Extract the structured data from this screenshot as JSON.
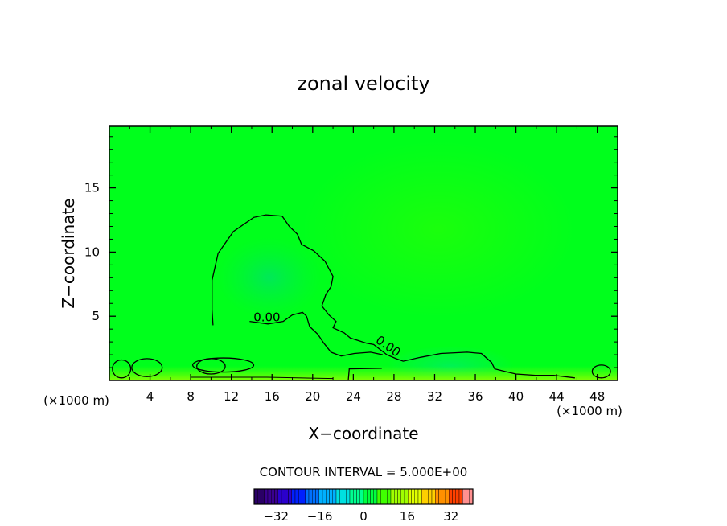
{
  "chart_data": {
    "type": "heatmap",
    "title": "zonal velocity",
    "xlabel": "X−coordinate",
    "ylabel": "Z−coordinate",
    "x_unit_left": "(×1000 m)",
    "x_unit_right": "(×1000 m)",
    "xlim": [
      0,
      50
    ],
    "ylim": [
      0,
      19.8
    ],
    "x_ticks": [
      4,
      8,
      12,
      16,
      20,
      24,
      28,
      32,
      36,
      40,
      44,
      48
    ],
    "y_ticks": [
      5,
      10,
      15
    ],
    "contour_interval_text": "CONTOUR INTERVAL = 5.000E+00",
    "contour_labels": [
      "0.00",
      "0.00"
    ],
    "colorbar": {
      "range": [
        -40,
        40
      ],
      "tick_values": [
        -32,
        -16,
        0,
        16,
        32
      ],
      "tick_labels": [
        "−32",
        "−16",
        "0",
        "16",
        "32"
      ]
    },
    "zero_contour_main": [
      [
        10.2,
        4.3
      ],
      [
        10.1,
        5.5
      ],
      [
        10.1,
        7.8
      ],
      [
        10.7,
        9.9
      ],
      [
        12.2,
        11.6
      ],
      [
        14.2,
        12.7
      ],
      [
        15.4,
        12.9
      ],
      [
        17.0,
        12.8
      ],
      [
        17.7,
        12.0
      ],
      [
        18.5,
        11.4
      ],
      [
        18.9,
        10.6
      ],
      [
        20.1,
        10.1
      ],
      [
        21.2,
        9.3
      ],
      [
        22.0,
        8.1
      ],
      [
        21.8,
        7.3
      ],
      [
        21.3,
        6.7
      ],
      [
        20.9,
        5.8
      ],
      [
        21.6,
        5.1
      ],
      [
        22.3,
        4.6
      ],
      [
        22.0,
        4.1
      ],
      [
        23.1,
        3.7
      ],
      [
        23.7,
        3.3
      ],
      [
        25.3,
        2.9
      ],
      [
        26.0,
        2.8
      ],
      [
        27.3,
        2.0
      ],
      [
        28.2,
        1.7
      ],
      [
        28.9,
        1.5
      ],
      [
        30.6,
        1.8
      ],
      [
        32.6,
        2.1
      ],
      [
        35.2,
        2.2
      ],
      [
        36.6,
        2.1
      ],
      [
        37.6,
        1.4
      ],
      [
        37.9,
        0.9
      ],
      [
        38.9,
        0.7
      ],
      [
        40.0,
        0.5
      ],
      [
        41.9,
        0.4
      ],
      [
        43.7,
        0.4
      ],
      [
        45.8,
        0.2
      ]
    ],
    "zero_contour_inner": [
      [
        13.8,
        4.6
      ],
      [
        15.6,
        4.4
      ],
      [
        17.1,
        4.6
      ],
      [
        18.0,
        5.1
      ],
      [
        19.0,
        5.3
      ],
      [
        19.4,
        5.0
      ],
      [
        19.7,
        4.2
      ],
      [
        20.5,
        3.6
      ],
      [
        21.1,
        2.9
      ],
      [
        21.8,
        2.2
      ],
      [
        22.8,
        1.9
      ],
      [
        24.1,
        2.1
      ],
      [
        25.7,
        2.2
      ],
      [
        26.9,
        2.0
      ]
    ],
    "colormap": [
      "#2a0066",
      "#3a0090",
      "#2a00cc",
      "#0020ff",
      "#0070ff",
      "#00b0ff",
      "#00e0e0",
      "#00ff90",
      "#00ff40",
      "#40ff00",
      "#a0ff00",
      "#e0ff00",
      "#ffd000",
      "#ff9000",
      "#ff4000",
      "#ff9090"
    ]
  }
}
